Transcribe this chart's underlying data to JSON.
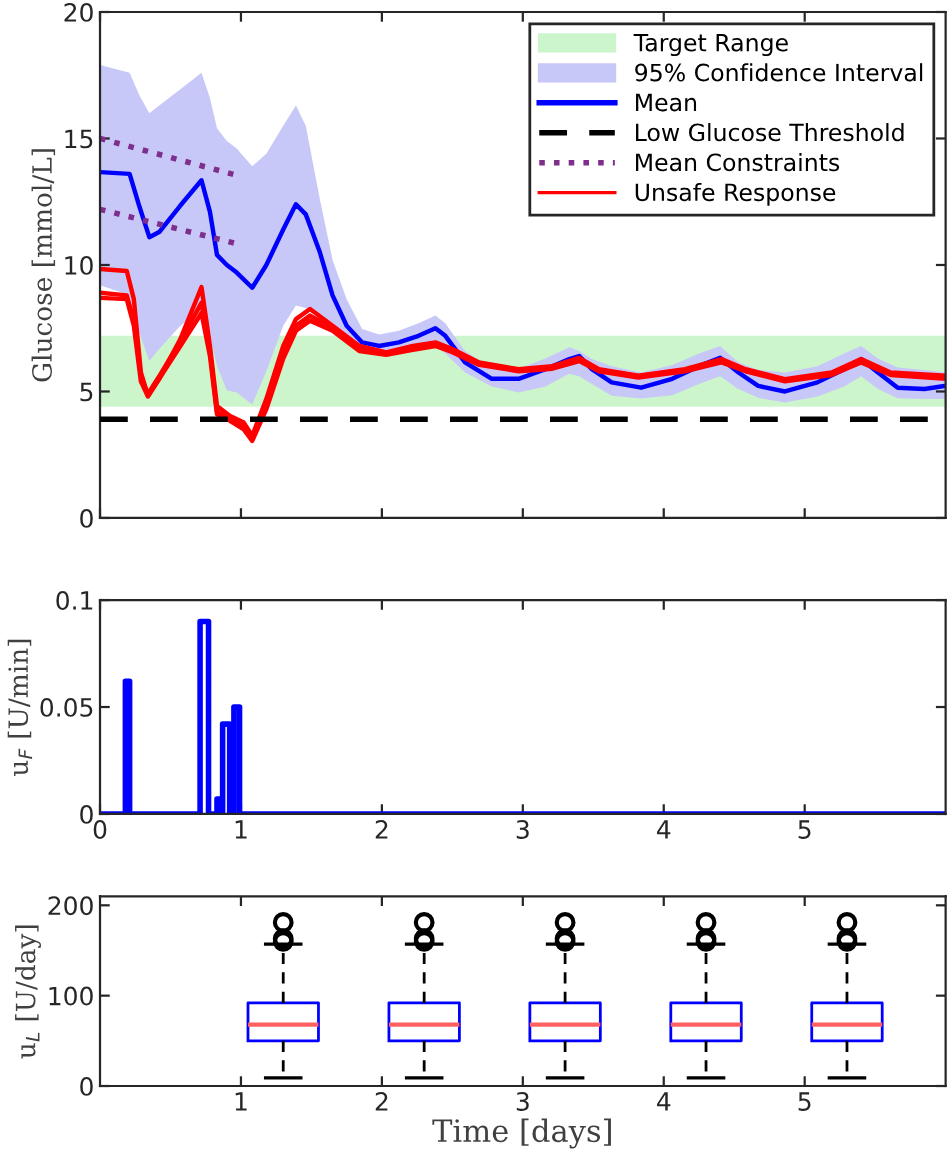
{
  "chart_data": [
    {
      "type": "line",
      "ylabel": "Glucose [mmol/L]",
      "xlim": [
        0,
        6
      ],
      "xticks": [
        0,
        1,
        2,
        3,
        4,
        5
      ],
      "ylim": [
        0,
        20
      ],
      "yticks": [
        0,
        5,
        10,
        15,
        20
      ],
      "tick_labels": "y",
      "grid": false,
      "legend": "top right",
      "bands": [
        {
          "axis": "y",
          "from": 4.4,
          "to": 7.2,
          "label": "Target Range",
          "color": "#ccf5cc"
        }
      ],
      "ref_lines": [
        {
          "axis": "y",
          "value": 3.9,
          "label": "Low Glucose Threshold",
          "color": "#000000",
          "line_style": "dashed"
        }
      ],
      "series": [
        {
          "type": "area",
          "name": "95% Confidence Interval",
          "color": "#c8c8f8",
          "x": [
            0,
            0.21,
            0.28,
            0.35,
            0.42,
            0.57,
            0.72,
            0.78,
            0.83,
            0.9,
            0.97,
            1.08,
            1.18,
            1.3,
            1.39,
            1.46,
            1.56,
            1.65,
            1.75,
            1.86,
            1.98,
            2.12,
            2.26,
            2.38,
            2.45,
            2.59,
            2.78,
            2.97,
            3.16,
            3.33,
            3.4,
            3.49,
            3.63,
            3.84,
            4.06,
            4.25,
            4.4,
            4.53,
            4.67,
            4.86,
            5.09,
            5.28,
            5.4,
            5.52,
            5.66,
            5.85,
            6.0
          ],
          "upper": [
            17.9,
            17.6,
            16.7,
            16.0,
            16.3,
            16.95,
            17.6,
            16.6,
            15.4,
            14.9,
            14.6,
            13.9,
            14.4,
            15.5,
            16.3,
            15.5,
            12.6,
            10.2,
            8.65,
            7.47,
            7.25,
            7.4,
            7.7,
            8.0,
            7.7,
            6.6,
            5.9,
            5.9,
            6.3,
            6.75,
            6.6,
            6.28,
            6.0,
            5.75,
            6.05,
            6.5,
            6.8,
            6.15,
            5.85,
            5.75,
            6.0,
            6.5,
            6.8,
            6.3,
            5.95,
            5.85,
            5.75
          ],
          "values": [
            null,
            null,
            null,
            null,
            null,
            null,
            null,
            null,
            null,
            null,
            null,
            null,
            null,
            null,
            null,
            null,
            null,
            null,
            null,
            null,
            null,
            null,
            null,
            null,
            null,
            null,
            null,
            null,
            null,
            null,
            null,
            null,
            null,
            null,
            null,
            null,
            null,
            null,
            null,
            null,
            null,
            null,
            null,
            null,
            null,
            null,
            null
          ],
          "lower": [
            9.2,
            8.8,
            7.3,
            6.2,
            6.68,
            7.6,
            8.2,
            7.2,
            6.0,
            5.05,
            4.96,
            4.49,
            5.8,
            7.6,
            8.4,
            8.3,
            8.0,
            7.5,
            7.0,
            6.68,
            6.55,
            6.6,
            6.7,
            6.8,
            6.5,
            5.75,
            5.2,
            4.96,
            5.2,
            5.7,
            5.6,
            5.3,
            4.83,
            4.72,
            4.85,
            5.3,
            5.6,
            5.1,
            4.75,
            4.56,
            4.8,
            5.2,
            5.6,
            5.1,
            4.73,
            4.7,
            4.7
          ]
        },
        {
          "type": "line",
          "name": "Mean",
          "color": "#0000ff",
          "x": [
            0,
            0.21,
            0.28,
            0.35,
            0.42,
            0.57,
            0.72,
            0.78,
            0.83,
            0.9,
            0.97,
            1.08,
            1.18,
            1.3,
            1.39,
            1.46,
            1.56,
            1.65,
            1.75,
            1.86,
            1.98,
            2.12,
            2.26,
            2.38,
            2.45,
            2.59,
            2.78,
            2.97,
            3.16,
            3.33,
            3.4,
            3.49,
            3.63,
            3.84,
            4.06,
            4.25,
            4.4,
            4.53,
            4.67,
            4.86,
            5.09,
            5.28,
            5.4,
            5.52,
            5.66,
            5.85,
            6.0
          ],
          "values": [
            13.67,
            13.6,
            12.3,
            11.1,
            11.3,
            12.35,
            13.35,
            12.1,
            10.4,
            10.0,
            9.7,
            9.1,
            10.0,
            11.4,
            12.4,
            12.0,
            10.5,
            8.8,
            7.6,
            6.94,
            6.8,
            6.94,
            7.2,
            7.5,
            7.2,
            6.15,
            5.5,
            5.5,
            5.88,
            6.28,
            6.4,
            5.88,
            5.36,
            5.15,
            5.5,
            6.0,
            6.33,
            5.75,
            5.22,
            5.0,
            5.36,
            5.88,
            6.28,
            5.75,
            5.15,
            5.1,
            5.22
          ]
        },
        {
          "type": "line",
          "name": "Mean Constraints",
          "color": "#7e2f8e",
          "line_style": "dotted",
          "x": [
            0,
            1
          ],
          "values": [
            15.0,
            13.5
          ]
        },
        {
          "type": "line",
          "color": "#7e2f8e",
          "line_style": "dotted",
          "x": [
            0,
            1
          ],
          "values": [
            12.2,
            10.8
          ]
        },
        {
          "type": "line",
          "name": "Unsafe Response",
          "color": "#ff0000",
          "x": [
            0,
            0.19,
            0.24,
            0.29,
            0.34,
            0.42,
            0.57,
            0.72,
            0.78,
            0.83,
            0.92,
            1.02,
            1.08,
            1.18,
            1.3,
            1.39,
            1.49,
            1.65,
            1.84,
            2.03,
            2.22,
            2.38,
            2.5,
            2.69,
            2.97,
            3.21,
            3.4,
            3.54,
            3.82,
            4.15,
            4.41,
            4.58,
            4.86,
            5.19,
            5.4,
            5.61,
            6.0
          ],
          "values": [
            9.84,
            9.76,
            8.65,
            5.75,
            4.83,
            5.49,
            7.07,
            9.13,
            6.8,
            4.43,
            4.04,
            3.77,
            3.25,
            4.7,
            6.8,
            7.86,
            8.26,
            7.6,
            6.8,
            6.54,
            6.8,
            6.94,
            6.68,
            6.15,
            5.88,
            6.0,
            6.33,
            5.88,
            5.62,
            5.88,
            6.28,
            5.88,
            5.49,
            5.75,
            6.28,
            5.75,
            5.62
          ]
        },
        {
          "type": "line",
          "color": "#ff0000",
          "x": [
            0,
            0.19,
            0.24,
            0.29,
            0.34,
            0.42,
            0.57,
            0.72,
            0.78,
            0.83,
            0.92,
            1.02,
            1.08,
            1.18,
            1.3,
            1.39,
            1.49,
            1.65,
            1.84,
            2.03,
            2.22,
            2.38,
            2.5,
            2.69,
            2.97,
            3.21,
            3.4,
            3.54,
            3.82,
            4.15,
            4.41,
            4.58,
            4.86,
            5.19,
            5.4,
            5.61,
            6.0
          ],
          "values": [
            8.9,
            8.8,
            7.8,
            5.6,
            4.9,
            5.6,
            7.0,
            8.5,
            6.6,
            4.2,
            3.9,
            3.6,
            3.1,
            4.5,
            6.5,
            7.6,
            8.0,
            7.5,
            6.7,
            6.5,
            6.7,
            6.85,
            6.6,
            6.1,
            5.85,
            5.95,
            6.25,
            5.85,
            5.6,
            5.85,
            6.2,
            5.85,
            5.45,
            5.7,
            6.2,
            5.7,
            5.55
          ]
        },
        {
          "type": "line",
          "color": "#ff0000",
          "x": [
            0,
            0.19,
            0.24,
            0.29,
            0.34,
            0.42,
            0.57,
            0.72,
            0.78,
            0.83,
            0.92,
            1.02,
            1.08,
            1.18,
            1.3,
            1.39,
            1.49,
            1.65,
            1.84,
            2.03,
            2.22,
            2.38,
            2.5,
            2.69,
            2.97,
            3.21,
            3.4,
            3.54,
            3.82,
            4.15,
            4.41,
            4.58,
            4.86,
            5.19,
            5.4,
            5.61,
            6.0
          ],
          "values": [
            8.7,
            8.65,
            7.6,
            5.4,
            4.8,
            5.5,
            6.8,
            8.1,
            6.4,
            4.1,
            3.85,
            3.5,
            3.05,
            4.3,
            6.3,
            7.4,
            7.8,
            7.4,
            6.6,
            6.45,
            6.65,
            6.8,
            6.55,
            6.05,
            5.8,
            5.9,
            6.2,
            5.8,
            5.55,
            5.8,
            6.15,
            5.8,
            5.4,
            5.65,
            6.15,
            5.65,
            5.5
          ]
        }
      ]
    },
    {
      "type": "step",
      "ylabel": "u$_{F}$ [U/min]",
      "xlim": [
        0,
        6
      ],
      "xticks": [
        0,
        1,
        2,
        3,
        4,
        5
      ],
      "ylim": [
        0,
        0.1
      ],
      "yticks": [
        0,
        0.05,
        0.1
      ],
      "grid": false,
      "series": [
        {
          "color": "#0000ff",
          "x": [
            0,
            0.18,
            0.21,
            0.71,
            0.77,
            0.83,
            0.86,
            0.87,
            0.92,
            0.95,
            0.99,
            6
          ],
          "values": [
            0,
            0.062,
            0,
            0.09,
            0,
            0.007,
            0,
            0.042,
            0,
            0.05,
            0,
            0
          ]
        }
      ]
    },
    {
      "type": "box",
      "xlabel": "Time [days]",
      "ylabel": "u$_{L}$ [U/day]",
      "xlim": [
        0,
        6
      ],
      "xticks": [
        1,
        2,
        3,
        4,
        5
      ],
      "ylim": [
        0,
        210
      ],
      "yticks": [
        0,
        100,
        200
      ],
      "grid": false,
      "series": [
        {
          "color": "#0000ff",
          "x": [
            1.3,
            2.3,
            3.3,
            4.3,
            5.3
          ],
          "boxes": [
            {
              "low": 9,
              "q1": 50,
              "median": 68,
              "q3": 92,
              "high": 157,
              "outliers": [
                160,
                163,
                181
              ]
            },
            {
              "low": 9,
              "q1": 50,
              "median": 68,
              "q3": 92,
              "high": 157,
              "outliers": [
                160,
                163,
                181
              ]
            },
            {
              "low": 9,
              "q1": 50,
              "median": 68,
              "q3": 92,
              "high": 157,
              "outliers": [
                160,
                163,
                181
              ]
            },
            {
              "low": 9,
              "q1": 50,
              "median": 68,
              "q3": 92,
              "high": 157,
              "outliers": [
                160,
                163,
                181
              ]
            },
            {
              "low": 9,
              "q1": 50,
              "median": 68,
              "q3": 92,
              "high": 157,
              "outliers": [
                160,
                163,
                181
              ]
            }
          ]
        }
      ]
    }
  ]
}
